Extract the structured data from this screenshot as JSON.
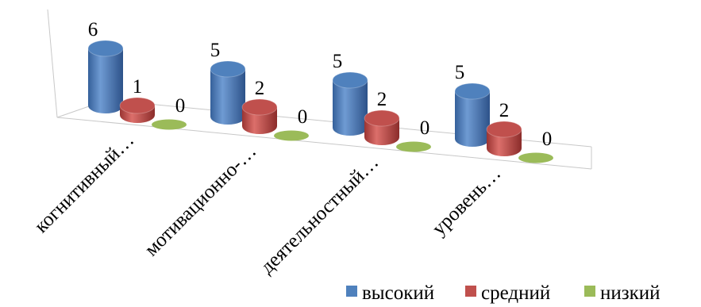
{
  "chart_data": {
    "type": "bar",
    "style": "3d-cylinder",
    "categories": [
      "когнитивный…",
      "мотивационно-…",
      "деятельностный…",
      "уровень…"
    ],
    "series": [
      {
        "name": "высокий",
        "values": [
          6,
          5,
          5,
          5
        ],
        "color": "#4F81BD"
      },
      {
        "name": "средний",
        "values": [
          1,
          2,
          2,
          2
        ],
        "color": "#C0504D"
      },
      {
        "name": "низкий",
        "values": [
          0,
          0,
          0,
          0
        ],
        "color": "#9BBB59"
      }
    ],
    "data_labels": true,
    "legend_position": "bottom-right",
    "grid": false
  }
}
